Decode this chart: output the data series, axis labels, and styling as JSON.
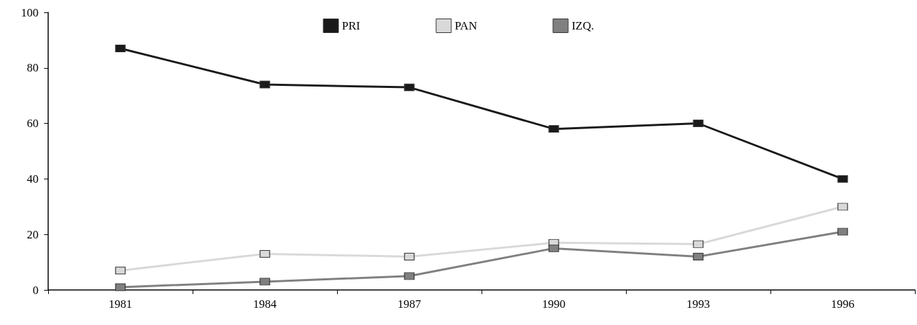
{
  "chart_data": {
    "type": "line",
    "categories": [
      "1981",
      "1984",
      "1987",
      "1990",
      "1993",
      "1996"
    ],
    "series": [
      {
        "name": "PRI",
        "color": "#1a1a1a",
        "values": [
          87,
          74,
          73,
          58,
          60,
          40
        ]
      },
      {
        "name": "PAN",
        "color": "#d9d9d9",
        "values": [
          7,
          13,
          12,
          17,
          16.5,
          30
        ]
      },
      {
        "name": "IZQ.",
        "color": "#808080",
        "values": [
          1,
          3,
          5,
          15,
          12,
          21
        ]
      }
    ],
    "ylim": [
      0,
      100
    ],
    "yticks": [
      0,
      20,
      40,
      60,
      80,
      100
    ],
    "grid": false,
    "legend": "top",
    "marker": "square",
    "line_style": "solid"
  }
}
